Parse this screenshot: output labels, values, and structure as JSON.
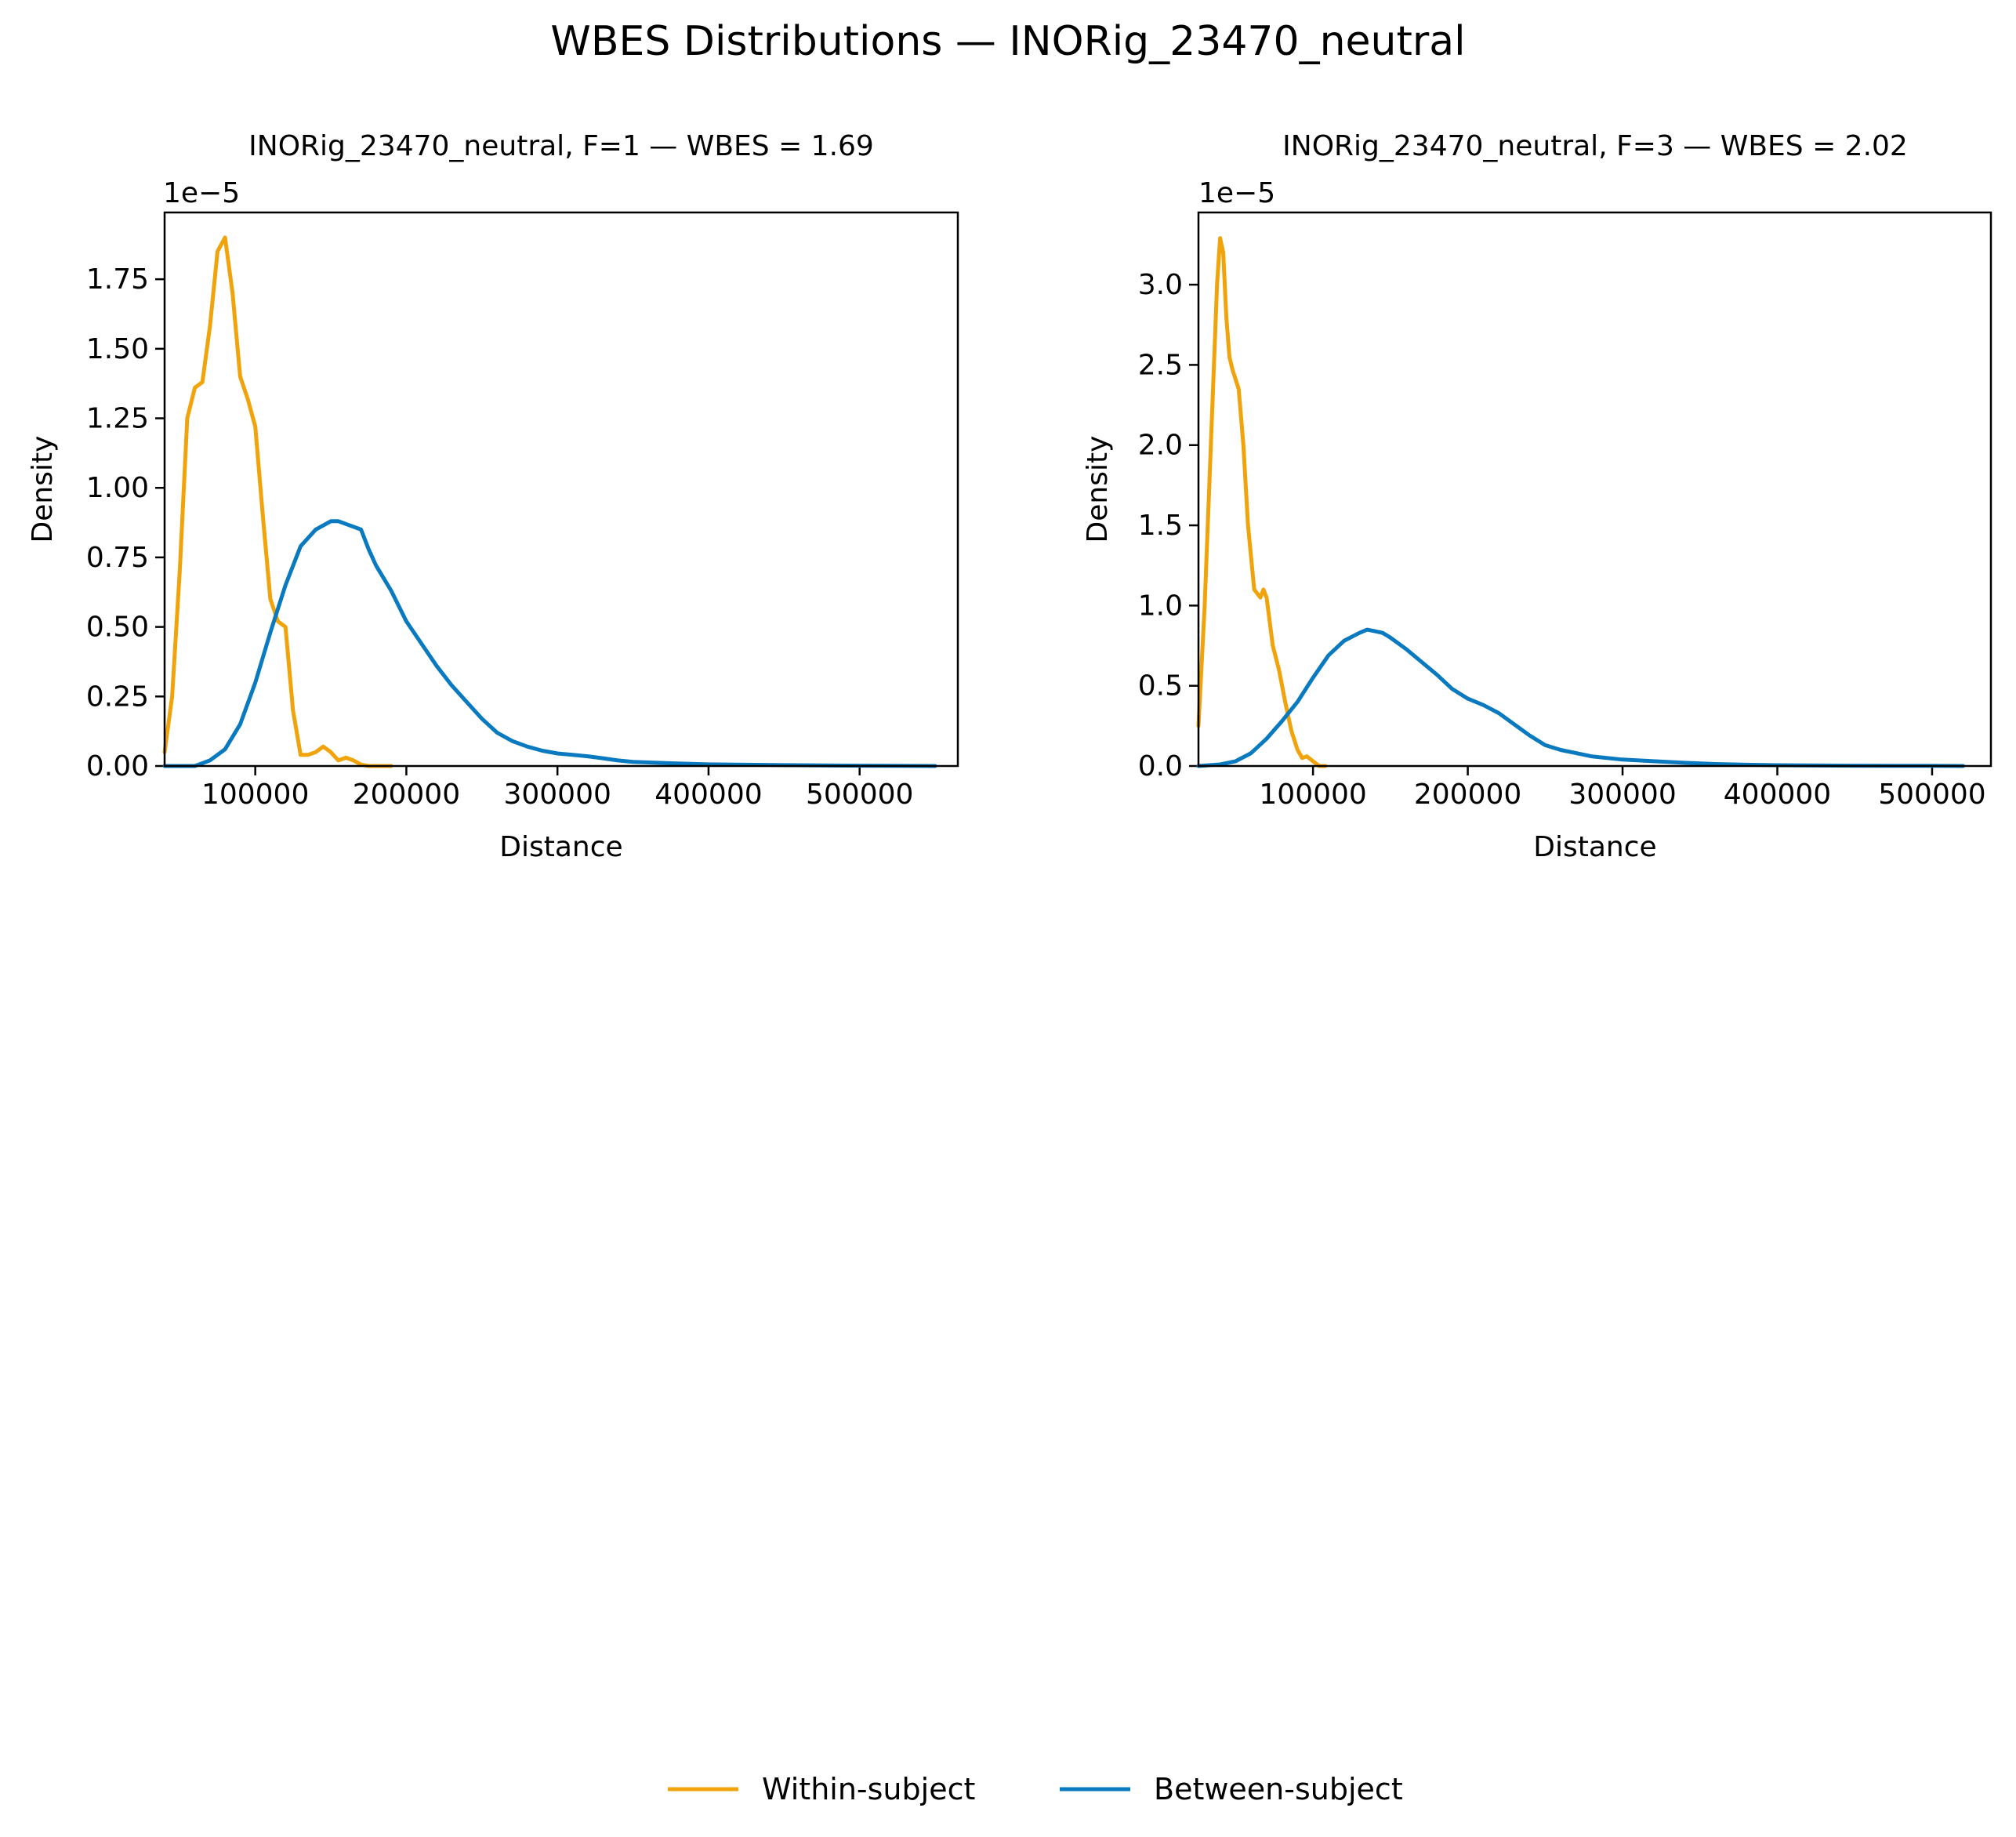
{
  "suptitle": "WBES Distributions — INORig_23470_neutral",
  "legend": {
    "placement": "bottom-center",
    "entries": [
      {
        "label": "Within-subject",
        "color": "#F0A30A"
      },
      {
        "label": "Between-subject",
        "color": "#0A7AC0"
      }
    ]
  },
  "chart_data": [
    {
      "type": "line",
      "title": "INORig_23470_neutral, F=1 — WBES = 1.69",
      "xlabel": "Distance",
      "ylabel": "Density",
      "y_scale_label": "1e−5",
      "y_multiplier": 1e-05,
      "xlim": [
        40000,
        565000
      ],
      "ylim": [
        0,
        1.99
      ],
      "xticks": [
        100000,
        200000,
        300000,
        400000,
        500000
      ],
      "xtick_labels": [
        "100000",
        "200000",
        "300000",
        "400000",
        "500000"
      ],
      "yticks": [
        0,
        0.25,
        0.5,
        0.75,
        1.0,
        1.25,
        1.5,
        1.75
      ],
      "ytick_labels": [
        "0.00",
        "0.25",
        "0.50",
        "0.75",
        "1.00",
        "1.25",
        "1.50",
        "1.75"
      ],
      "grid": false,
      "series": [
        {
          "name": "Within-subject",
          "color": "#F0A30A",
          "x": [
            40000,
            45000,
            50000,
            55000,
            60000,
            65000,
            70000,
            75000,
            80000,
            85000,
            90000,
            95000,
            100000,
            105000,
            110000,
            115000,
            120000,
            125000,
            130000,
            135000,
            140000,
            145000,
            150000,
            155000,
            160000,
            165000,
            170000,
            175000,
            180000,
            185000,
            190000
          ],
          "y": [
            0.05,
            0.25,
            0.7,
            1.25,
            1.36,
            1.38,
            1.58,
            1.85,
            1.9,
            1.7,
            1.4,
            1.32,
            1.22,
            0.9,
            0.6,
            0.52,
            0.5,
            0.2,
            0.04,
            0.04,
            0.05,
            0.07,
            0.05,
            0.02,
            0.03,
            0.02,
            0.005,
            0.0,
            0.0,
            0.0,
            0.0
          ]
        },
        {
          "name": "Between-subject",
          "color": "#0A7AC0",
          "x": [
            40000,
            60000,
            70000,
            80000,
            90000,
            100000,
            110000,
            120000,
            130000,
            140000,
            150000,
            155000,
            160000,
            170000,
            175000,
            180000,
            190000,
            200000,
            210000,
            220000,
            230000,
            240000,
            250000,
            260000,
            270000,
            280000,
            290000,
            300000,
            310000,
            320000,
            330000,
            340000,
            350000,
            375000,
            400000,
            450000,
            500000,
            550000
          ],
          "y": [
            0.0,
            0.0,
            0.02,
            0.06,
            0.15,
            0.3,
            0.48,
            0.65,
            0.79,
            0.85,
            0.88,
            0.88,
            0.87,
            0.85,
            0.78,
            0.72,
            0.63,
            0.52,
            0.44,
            0.36,
            0.29,
            0.23,
            0.17,
            0.12,
            0.09,
            0.07,
            0.055,
            0.045,
            0.04,
            0.035,
            0.028,
            0.02,
            0.015,
            0.01,
            0.006,
            0.003,
            0.001,
            0.0
          ]
        }
      ]
    },
    {
      "type": "line",
      "title": "INORig_23470_neutral, F=3 — WBES = 2.02",
      "xlabel": "Distance",
      "ylabel": "Density",
      "y_scale_label": "1e−5",
      "y_multiplier": 1e-05,
      "xlim": [
        26000,
        538000
      ],
      "ylim": [
        0,
        3.45
      ],
      "xticks": [
        100000,
        200000,
        300000,
        400000,
        500000
      ],
      "xtick_labels": [
        "100000",
        "200000",
        "300000",
        "400000",
        "500000"
      ],
      "yticks": [
        0,
        0.5,
        1.0,
        1.5,
        2.0,
        2.5,
        3.0
      ],
      "ytick_labels": [
        "0.0",
        "0.5",
        "1.0",
        "1.5",
        "2.0",
        "2.5",
        "3.0"
      ],
      "grid": false,
      "series": [
        {
          "name": "Within-subject",
          "color": "#F0A30A",
          "x": [
            26000,
            30000,
            34000,
            38000,
            40000,
            42000,
            44000,
            46000,
            48000,
            52000,
            55000,
            58000,
            62000,
            66000,
            68000,
            70000,
            74000,
            78000,
            82000,
            86000,
            90000,
            93000,
            96000,
            100000,
            104000,
            108000
          ],
          "y": [
            0.25,
            1.0,
            2.0,
            3.0,
            3.29,
            3.2,
            2.8,
            2.55,
            2.47,
            2.35,
            2.0,
            1.5,
            1.1,
            1.05,
            1.1,
            1.05,
            0.75,
            0.6,
            0.4,
            0.22,
            0.1,
            0.05,
            0.06,
            0.03,
            0.0,
            0.0
          ]
        },
        {
          "name": "Between-subject",
          "color": "#0A7AC0",
          "x": [
            26000,
            40000,
            50000,
            60000,
            70000,
            80000,
            90000,
            100000,
            110000,
            120000,
            130000,
            135000,
            140000,
            145000,
            150000,
            160000,
            170000,
            180000,
            190000,
            200000,
            210000,
            220000,
            230000,
            240000,
            250000,
            260000,
            270000,
            280000,
            300000,
            320000,
            340000,
            360000,
            380000,
            400000,
            450000,
            500000,
            520000
          ],
          "y": [
            0.0,
            0.01,
            0.03,
            0.08,
            0.17,
            0.28,
            0.4,
            0.55,
            0.69,
            0.78,
            0.83,
            0.85,
            0.84,
            0.83,
            0.8,
            0.73,
            0.65,
            0.57,
            0.48,
            0.42,
            0.38,
            0.33,
            0.26,
            0.19,
            0.13,
            0.1,
            0.08,
            0.06,
            0.04,
            0.03,
            0.02,
            0.012,
            0.008,
            0.005,
            0.002,
            0.001,
            0.0
          ]
        }
      ]
    }
  ]
}
